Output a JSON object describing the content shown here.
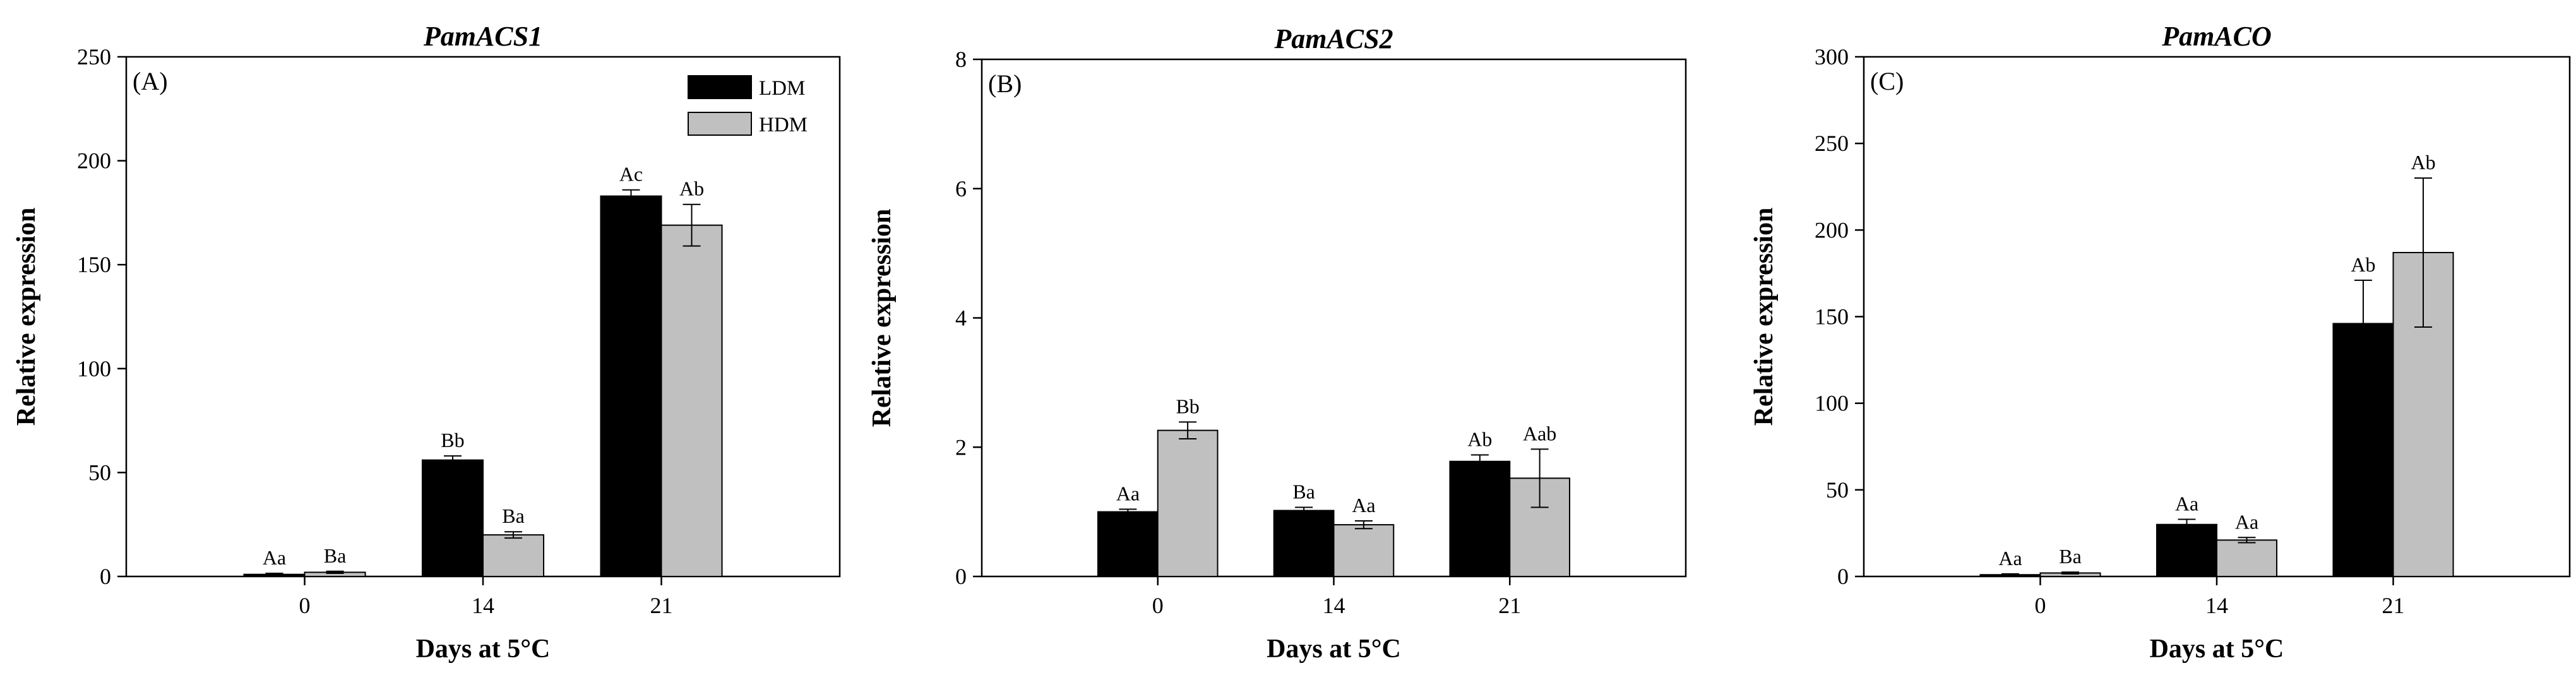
{
  "chart_data": [
    {
      "type": "bar",
      "title": "PamACS1",
      "panel_label": "(A)",
      "xlabel": "Days at 5°C",
      "ylabel": "Relative expression",
      "categories": [
        "0",
        "14",
        "21"
      ],
      "ylim": [
        0,
        250
      ],
      "yticks": [
        0,
        50,
        100,
        150,
        200,
        250
      ],
      "series": [
        {
          "name": "LDM",
          "color": "#000000",
          "values": [
            1,
            56,
            183
          ],
          "errors": [
            0.5,
            2,
            3
          ],
          "labels": [
            "Aa",
            "Bb",
            "Ac"
          ]
        },
        {
          "name": "HDM",
          "color": "#c0c0c0",
          "values": [
            2,
            20,
            169
          ],
          "errors": [
            0.5,
            1.5,
            10
          ],
          "labels": [
            "Ba",
            "Ba",
            "Ab"
          ]
        }
      ],
      "legend": {
        "position": "top-right",
        "entries": [
          "LDM",
          "HDM"
        ]
      }
    },
    {
      "type": "bar",
      "title": "PamACS2",
      "panel_label": "(B)",
      "xlabel": "Days at 5°C",
      "ylabel": "Relative expression",
      "categories": [
        "0",
        "14",
        "21"
      ],
      "ylim": [
        0,
        8
      ],
      "yticks": [
        0,
        2,
        4,
        6,
        8
      ],
      "series": [
        {
          "name": "LDM",
          "color": "#000000",
          "values": [
            1.0,
            1.02,
            1.78
          ],
          "errors": [
            0.04,
            0.05,
            0.1
          ],
          "labels": [
            "Aa",
            "Ba",
            "Ab"
          ]
        },
        {
          "name": "HDM",
          "color": "#c0c0c0",
          "values": [
            2.26,
            0.8,
            1.52
          ],
          "errors": [
            0.13,
            0.06,
            0.45
          ],
          "labels": [
            "Bb",
            "Aa",
            "Aab"
          ]
        }
      ]
    },
    {
      "type": "bar",
      "title": "PamACO",
      "panel_label": "(C)",
      "xlabel": "Days at 5°C",
      "ylabel": "Relative expression",
      "categories": [
        "0",
        "14",
        "21"
      ],
      "ylim": [
        0,
        300
      ],
      "yticks": [
        0,
        50,
        100,
        150,
        200,
        250,
        300
      ],
      "series": [
        {
          "name": "LDM",
          "color": "#000000",
          "values": [
            1,
            30,
            146
          ],
          "errors": [
            0.5,
            3,
            25
          ],
          "labels": [
            "Aa",
            "Aa",
            "Ab"
          ]
        },
        {
          "name": "HDM",
          "color": "#c0c0c0",
          "values": [
            2,
            21,
            187
          ],
          "errors": [
            0.5,
            1.5,
            43
          ],
          "labels": [
            "Ba",
            "Aa",
            "Ab"
          ]
        }
      ]
    }
  ]
}
